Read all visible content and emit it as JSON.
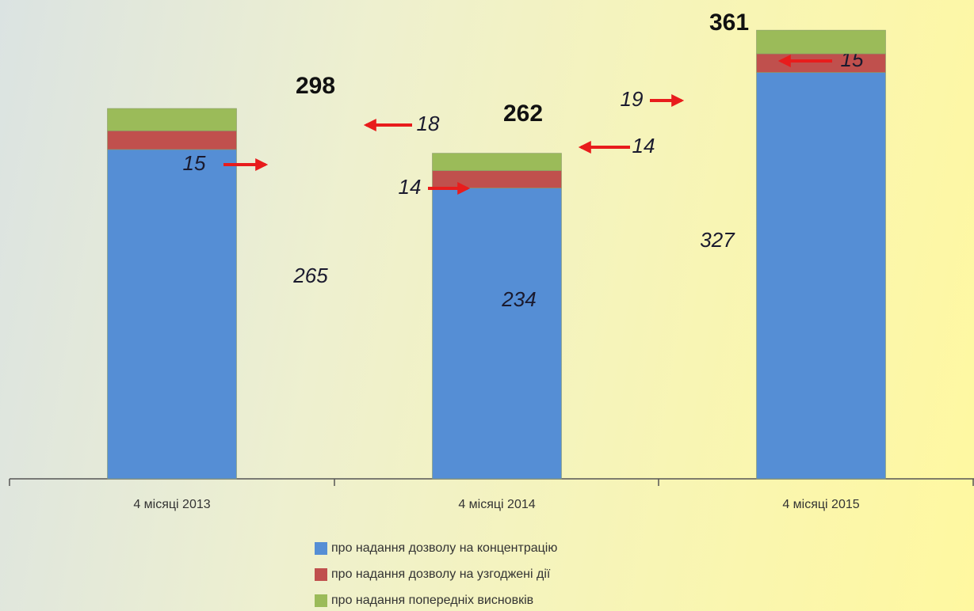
{
  "chart_data": {
    "type": "stacked_bar",
    "categories": [
      "4 місяці 2013",
      "4 місяці 2014",
      "4 місяці 2015"
    ],
    "series": [
      {
        "name": "про надання дозволу на концентрацію",
        "color": "#558ed5",
        "values": [
          265,
          234,
          327
        ]
      },
      {
        "name": "про надання дозволу на узгоджені дії",
        "color": "#c0504d",
        "values": [
          15,
          14,
          15
        ]
      },
      {
        "name": "про надання попередніх висновків",
        "color": "#9bbb59",
        "values": [
          18,
          14,
          19
        ]
      }
    ],
    "totals": [
      298,
      262,
      361
    ],
    "ylim": [
      0,
      370
    ],
    "legend": "bottom"
  }
}
